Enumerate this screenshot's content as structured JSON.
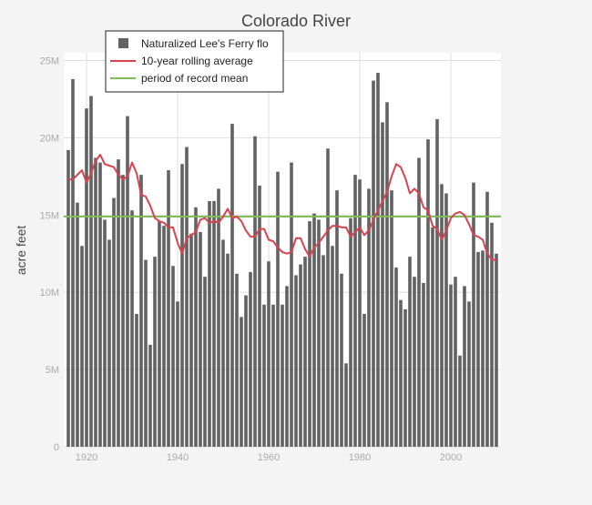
{
  "chart_data": {
    "type": "bar",
    "title": "Colorado River",
    "xlabel": "",
    "ylabel": "acre feet",
    "xlim": [
      1915,
      2011
    ],
    "ylim": [
      0,
      25500000
    ],
    "x_ticks": [
      1920,
      1940,
      1960,
      1980,
      2000
    ],
    "x_tick_labels": [
      "1920",
      "1940",
      "1960",
      "1980",
      "2000"
    ],
    "y_ticks": [
      0,
      5000000,
      10000000,
      15000000,
      20000000,
      25000000
    ],
    "y_tick_labels": [
      "0",
      "5M",
      "10M",
      "15M",
      "20M",
      "25M"
    ],
    "grid": true,
    "legend_position": "top-left",
    "colors": {
      "bars": "#626262",
      "rolling": "#d9434f",
      "mean": "#7fbf5a",
      "plot_bg": "#ffffff",
      "page_bg": "#f4f4f4",
      "grid": "#dedede",
      "text": "#444444",
      "tick": "#aaaaaa"
    },
    "series": [
      {
        "name": "Naturalized Lee's Ferry flo",
        "kind": "bar",
        "x": [
          1916,
          1917,
          1918,
          1919,
          1920,
          1921,
          1922,
          1923,
          1924,
          1925,
          1926,
          1927,
          1928,
          1929,
          1930,
          1931,
          1932,
          1933,
          1934,
          1935,
          1936,
          1937,
          1938,
          1939,
          1940,
          1941,
          1942,
          1943,
          1944,
          1945,
          1946,
          1947,
          1948,
          1949,
          1950,
          1951,
          1952,
          1953,
          1954,
          1955,
          1956,
          1957,
          1958,
          1959,
          1960,
          1961,
          1962,
          1963,
          1964,
          1965,
          1966,
          1967,
          1968,
          1969,
          1970,
          1971,
          1972,
          1973,
          1974,
          1975,
          1976,
          1977,
          1978,
          1979,
          1980,
          1981,
          1982,
          1983,
          1984,
          1985,
          1986,
          1987,
          1988,
          1989,
          1990,
          1991,
          1992,
          1993,
          1994,
          1995,
          1996,
          1997,
          1998,
          1999,
          2000,
          2001,
          2002,
          2003,
          2004,
          2005,
          2006,
          2007,
          2008,
          2009,
          2010
        ],
        "values": [
          19200000,
          23800000,
          15800000,
          13000000,
          21900000,
          22700000,
          18700000,
          18400000,
          14700000,
          13400000,
          16100000,
          18600000,
          17600000,
          21400000,
          15300000,
          8600000,
          17600000,
          12100000,
          6600000,
          12300000,
          14600000,
          14300000,
          17900000,
          11700000,
          9400000,
          18300000,
          19400000,
          13800000,
          15500000,
          13900000,
          11000000,
          15900000,
          15900000,
          16700000,
          13400000,
          12500000,
          20900000,
          11200000,
          8400000,
          9800000,
          11300000,
          20100000,
          16900000,
          9200000,
          12000000,
          9200000,
          17800000,
          9200000,
          10400000,
          18400000,
          11100000,
          11800000,
          12300000,
          14600000,
          15100000,
          14700000,
          12400000,
          19300000,
          13000000,
          16600000,
          11200000,
          5400000,
          14800000,
          17600000,
          17300000,
          8600000,
          16700000,
          23700000,
          24200000,
          21000000,
          22300000,
          16600000,
          11600000,
          9500000,
          8900000,
          12300000,
          11000000,
          18700000,
          10600000,
          19900000,
          14200000,
          21200000,
          17000000,
          16400000,
          10500000,
          11000000,
          5900000,
          10400000,
          9400000,
          17100000,
          12600000,
          12700000,
          16500000,
          14500000,
          12500000
        ]
      },
      {
        "name": "10-year rolling average",
        "kind": "line",
        "x": [
          1916,
          1917,
          1918,
          1919,
          1920,
          1921,
          1922,
          1923,
          1924,
          1925,
          1926,
          1927,
          1928,
          1929,
          1930,
          1931,
          1932,
          1933,
          1934,
          1935,
          1936,
          1937,
          1938,
          1939,
          1940,
          1941,
          1942,
          1943,
          1944,
          1945,
          1946,
          1947,
          1948,
          1949,
          1950,
          1951,
          1952,
          1953,
          1954,
          1955,
          1956,
          1957,
          1958,
          1959,
          1960,
          1961,
          1962,
          1963,
          1964,
          1965,
          1966,
          1967,
          1968,
          1969,
          1970,
          1971,
          1972,
          1973,
          1974,
          1975,
          1976,
          1977,
          1978,
          1979,
          1980,
          1981,
          1982,
          1983,
          1984,
          1985,
          1986,
          1987,
          1988,
          1989,
          1990,
          1991,
          1992,
          1993,
          1994,
          1995,
          1996,
          1997,
          1998,
          1999,
          2000,
          2001,
          2002,
          2003,
          2004,
          2005,
          2006,
          2007,
          2008,
          2009,
          2010
        ],
        "values": [
          17300000,
          17300000,
          17600000,
          17900000,
          17100000,
          17700000,
          18500000,
          18900000,
          18300000,
          18200000,
          18100000,
          17600000,
          17300000,
          17500000,
          18400000,
          17700000,
          16300000,
          16200000,
          15600000,
          14800000,
          14600000,
          14500000,
          14200000,
          14200000,
          13200000,
          12500000,
          13500000,
          13700000,
          13900000,
          14700000,
          14800000,
          14500000,
          14600000,
          14500000,
          14900000,
          15400000,
          14800000,
          14900000,
          14600000,
          14000000,
          13600000,
          13600000,
          14100000,
          14100000,
          13400000,
          13300000,
          12900000,
          12600000,
          12500000,
          12600000,
          13500000,
          13500000,
          12800000,
          12300000,
          12900000,
          13200000,
          13600000,
          14000000,
          14300000,
          14300000,
          14200000,
          14200000,
          13600000,
          13900000,
          14200000,
          13700000,
          14000000,
          14700000,
          15300000,
          15900000,
          16500000,
          17500000,
          18300000,
          18100000,
          17400000,
          16400000,
          16700000,
          16400000,
          15500000,
          15300000,
          14300000,
          14100000,
          13400000,
          14000000,
          14800000,
          15100000,
          15200000,
          15000000,
          14400000,
          13700000,
          13600000,
          13400000,
          12500000,
          12100000,
          12100000
        ]
      },
      {
        "name": "period of record mean",
        "kind": "hline",
        "value": 14900000
      }
    ]
  }
}
